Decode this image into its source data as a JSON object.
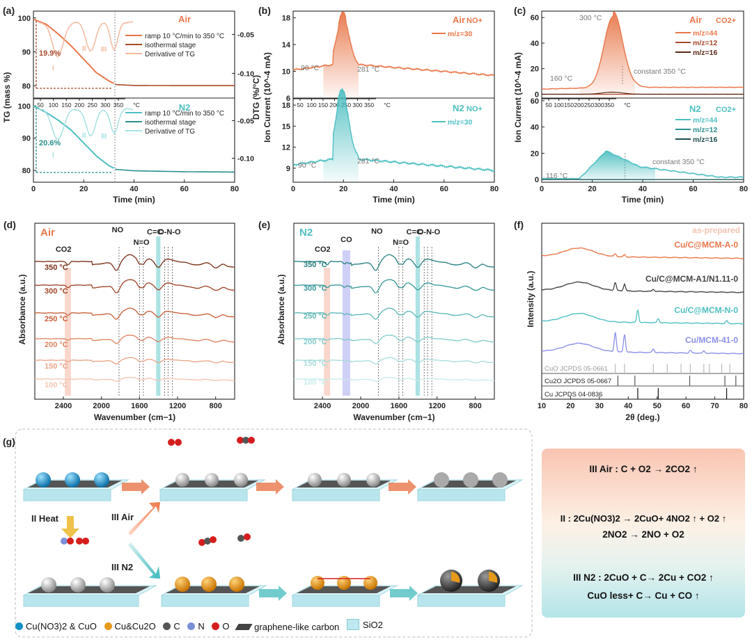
{
  "colors": {
    "air": "#e8774a",
    "air_dark": "#a8492a",
    "air_darker": "#5a2a1a",
    "n2": "#4fbfc2",
    "n2_dark": "#2a8f8f",
    "n2_darker": "#1f4e4e",
    "co2_band": "#f4b6a3",
    "co_band": "#a8aaf0",
    "cc_band": "#7fd3d6",
    "mcm": "#8a8fe8"
  },
  "chart_data": [
    {
      "panel": "(a)",
      "type": "line",
      "title_air": "Air",
      "title_n2": "N2",
      "xlabel": "Time (min)",
      "ylabel": "TG (mass %)",
      "ylabel2": "DTG (%/°C)",
      "xlim": [
        0,
        80
      ],
      "ylim": [
        78,
        102
      ],
      "ylim2": [
        -0.13,
        -0.02
      ],
      "xticks": [
        "0",
        "20",
        "40",
        "60",
        "80"
      ],
      "yticks": [
        "80",
        "90",
        "100"
      ],
      "y2ticks": [
        "-0.05",
        "-0.10"
      ],
      "tticks": [
        "50",
        "100",
        "150",
        "200",
        "250",
        "300",
        "350",
        "°C"
      ],
      "legend": [
        "ramp 10 °C/min to 350 °C",
        "isothermal stage",
        "Derivative of TG"
      ],
      "annot_air": {
        "loss": "19.9%",
        "stages": [
          "I",
          "II",
          "III"
        ]
      },
      "annot_n2": {
        "loss": "20.6%",
        "stages": [
          "I",
          "II",
          "III"
        ]
      },
      "series": [
        {
          "name": "Air TG",
          "x": [
            0,
            5,
            10,
            15,
            20,
            25,
            30,
            33,
            40,
            60,
            80
          ],
          "y": [
            100,
            98.5,
            95.5,
            92,
            88,
            84,
            81.5,
            80.4,
            80.15,
            80.1,
            80.1
          ]
        },
        {
          "name": "N2 TG",
          "x": [
            0,
            5,
            10,
            15,
            20,
            25,
            30,
            33,
            40,
            60,
            80
          ],
          "y": [
            100,
            98,
            95.5,
            92.5,
            88.5,
            84.5,
            81.5,
            80.3,
            79.9,
            79.6,
            79.5
          ]
        }
      ]
    },
    {
      "panel": "(b)",
      "type": "line",
      "xlabel": "Time (min)",
      "ylabel": "Ion Current (10^-4 mA)",
      "xlim": [
        0,
        80
      ],
      "air": {
        "label": "Air",
        "species": "NO+",
        "legend": "m/z=30",
        "ylim": [
          6,
          19
        ],
        "yticks": [
          "6",
          "10",
          "14",
          "18"
        ],
        "annot": [
          "90 °C",
          "281 °C"
        ]
      },
      "n2": {
        "label": "N2",
        "species": "NO+",
        "legend": "m/z=30",
        "ylim": [
          7,
          19
        ],
        "yticks": [
          "9",
          "12",
          "15",
          "18"
        ],
        "annot": [
          "90 °C",
          "281 °C"
        ]
      },
      "xticks": [
        "0",
        "20",
        "40",
        "60",
        "80"
      ],
      "tticks": [
        "50",
        "100",
        "150",
        "200",
        "250",
        "300",
        "350",
        "°C"
      ]
    },
    {
      "panel": "(c)",
      "type": "line",
      "xlabel": "Time (min)",
      "ylabel": "Ion Current (10^-4 mA)",
      "xlim": [
        0,
        80
      ],
      "air": {
        "label": "Air",
        "species": "CO2+",
        "legend": [
          "m/z=44",
          "m/z=12",
          "m/z=16"
        ],
        "ylim": [
          -3,
          65
        ],
        "yticks": [
          "0",
          "20",
          "40",
          "60"
        ],
        "annot": [
          "300 °C",
          "160 °C",
          "constant 350 °C"
        ]
      },
      "n2": {
        "label": "N2",
        "species": "CO2+",
        "legend": [
          "m/z=44",
          "m/z=12",
          "m/z=16"
        ],
        "ylim": [
          -2,
          62
        ],
        "yticks": [
          "0",
          "20",
          "40",
          "60"
        ],
        "annot": [
          "116 °C",
          "constant 350 °C"
        ]
      },
      "xticks": [
        "0",
        "20",
        "40",
        "60",
        "80"
      ],
      "tticks": [
        "50",
        "100",
        "150",
        "200",
        "250",
        "300",
        "350",
        "°C"
      ]
    },
    {
      "panel": "(d)",
      "type": "line",
      "title": "Air",
      "xlabel": "Wavenumber (cm−1)",
      "ylabel": "Absorbance (a.u.)",
      "xlim": [
        2700,
        600
      ],
      "xticks": [
        "2400",
        "2000",
        "1600",
        "1200",
        "800"
      ],
      "temps": [
        "350 °C",
        "300 °C",
        "250 °C",
        "200 °C",
        "150 °C",
        "100 °C"
      ],
      "peaks": [
        "CO2",
        "NO",
        "N=O",
        "C=C",
        "O-N-O"
      ]
    },
    {
      "panel": "(e)",
      "type": "line",
      "title": "N2",
      "xlabel": "Wavenumber (cm−1)",
      "ylabel": "Absorbance (a.u.)",
      "xlim": [
        2700,
        600
      ],
      "xticks": [
        "2400",
        "2000",
        "1600",
        "1200",
        "800"
      ],
      "temps": [
        "350 °C",
        "300 °C",
        "250 °C",
        "200 °C",
        "150 °C",
        "100 °C"
      ],
      "peaks": [
        "CO2",
        "CO",
        "NO",
        "N=O",
        "C=C",
        "O-N-O"
      ]
    },
    {
      "panel": "(f)",
      "type": "line",
      "title": "as-prepared",
      "xlabel": "2θ (deg.)",
      "ylabel": "Intensity (a.u.)",
      "xlim": [
        10,
        80
      ],
      "xticks": [
        "10",
        "20",
        "30",
        "40",
        "50",
        "60",
        "70",
        "80"
      ],
      "series": [
        "Cu/C@MCM-A-0",
        "Cu/C@MCM-A1/N1.11-0",
        "Cu/C@MCM-N-0",
        "Cu/MCM-41-0"
      ],
      "refs": [
        {
          "name": "CuO JCPDS 05-0661",
          "peaks": [
            35.5,
            38.7,
            48.7,
            53.5,
            58.3,
            61.5,
            66.2,
            68.1,
            72.4,
            75.2
          ]
        },
        {
          "name": "Cu2O JCPDS 05-0667",
          "peaks": [
            36.4,
            42.3,
            61.3,
            73.5,
            77.3
          ]
        },
        {
          "name": "Cu JCPDS 04-0836",
          "peaks": [
            43.3,
            50.4,
            74.1
          ]
        }
      ]
    }
  ],
  "schematic": {
    "panel": "(g)",
    "labels": {
      "heat": "II  Heat",
      "air": "III  Air",
      "n2": "III  N2"
    },
    "legend": [
      "Cu(NO3)2 & CuO",
      "Cu&Cu2O",
      "C",
      "N",
      "O",
      "graphene-like carbon",
      "SiO2"
    ],
    "equations": [
      "III Air : C + O2 → 2CO2 ↑",
      "II : 2Cu(NO3)2 → 2CuO+ 4NO2 ↑ + O2 ↑",
      "2NO2 → 2NO + O2",
      "III N2 : 2CuO + C→ 2Cu + CO2 ↑",
      "CuO less+ C→ Cu + CO ↑"
    ]
  }
}
